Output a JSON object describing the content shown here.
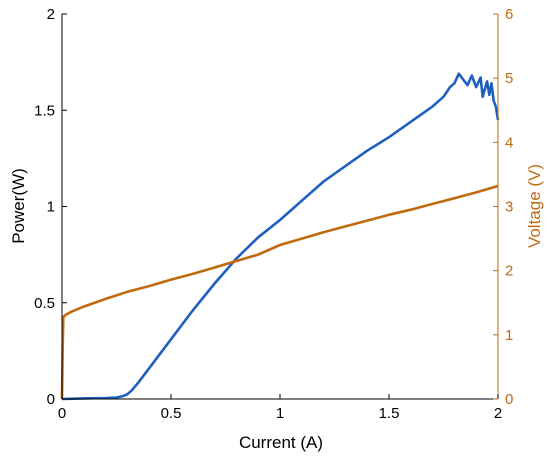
{
  "chart_data": {
    "type": "line",
    "xlabel": "Current (A)",
    "ylabel_left": "Power(W)",
    "ylabel_right": "Voltage (V)",
    "xlim": [
      0,
      2
    ],
    "ylim_left": [
      0,
      2
    ],
    "ylim_right": [
      0,
      6
    ],
    "x_ticks": [
      "0",
      "0.5",
      "1",
      "1.5",
      "2"
    ],
    "y_left_ticks": [
      "0",
      "0.5",
      "1",
      "1.5",
      "2"
    ],
    "y_right_ticks": [
      "0",
      "1",
      "2",
      "3",
      "4",
      "5",
      "6"
    ],
    "grid": false,
    "colors": {
      "power": "#1f5fc0",
      "voltage": "#c06a10",
      "axis": "#000000"
    },
    "series": [
      {
        "axis": "left",
        "color": "#1f5fc0",
        "points": [
          [
            0,
            0
          ],
          [
            0.1,
            0.003
          ],
          [
            0.2,
            0.005
          ],
          [
            0.25,
            0.008
          ],
          [
            0.28,
            0.015
          ],
          [
            0.3,
            0.025
          ],
          [
            0.32,
            0.045
          ],
          [
            0.35,
            0.085
          ],
          [
            0.4,
            0.16
          ],
          [
            0.5,
            0.31
          ],
          [
            0.6,
            0.46
          ],
          [
            0.7,
            0.6
          ],
          [
            0.8,
            0.73
          ],
          [
            0.9,
            0.84
          ],
          [
            1.0,
            0.93
          ],
          [
            1.1,
            1.03
          ],
          [
            1.2,
            1.13
          ],
          [
            1.3,
            1.21
          ],
          [
            1.4,
            1.29
          ],
          [
            1.5,
            1.36
          ],
          [
            1.6,
            1.44
          ],
          [
            1.7,
            1.52
          ],
          [
            1.75,
            1.57
          ],
          [
            1.78,
            1.62
          ],
          [
            1.8,
            1.64
          ],
          [
            1.82,
            1.69
          ],
          [
            1.84,
            1.66
          ],
          [
            1.86,
            1.63
          ],
          [
            1.88,
            1.68
          ],
          [
            1.9,
            1.62
          ],
          [
            1.92,
            1.67
          ],
          [
            1.93,
            1.57
          ],
          [
            1.95,
            1.65
          ],
          [
            1.96,
            1.58
          ],
          [
            1.97,
            1.64
          ],
          [
            1.98,
            1.55
          ],
          [
            1.99,
            1.52
          ],
          [
            2.0,
            1.45
          ]
        ]
      },
      {
        "axis": "right",
        "color": "#c06a10",
        "points": [
          [
            0,
            0
          ],
          [
            0.003,
            0.8
          ],
          [
            0.006,
            1.28
          ],
          [
            0.02,
            1.32
          ],
          [
            0.05,
            1.37
          ],
          [
            0.1,
            1.44
          ],
          [
            0.2,
            1.56
          ],
          [
            0.3,
            1.67
          ],
          [
            0.4,
            1.76
          ],
          [
            0.5,
            1.86
          ],
          [
            0.6,
            1.95
          ],
          [
            0.7,
            2.05
          ],
          [
            0.8,
            2.15
          ],
          [
            0.9,
            2.25
          ],
          [
            1.0,
            2.4
          ],
          [
            1.1,
            2.5
          ],
          [
            1.2,
            2.6
          ],
          [
            1.3,
            2.69
          ],
          [
            1.4,
            2.78
          ],
          [
            1.5,
            2.87
          ],
          [
            1.6,
            2.95
          ],
          [
            1.7,
            3.04
          ],
          [
            1.8,
            3.13
          ],
          [
            1.9,
            3.22
          ],
          [
            2.0,
            3.32
          ]
        ]
      }
    ]
  }
}
